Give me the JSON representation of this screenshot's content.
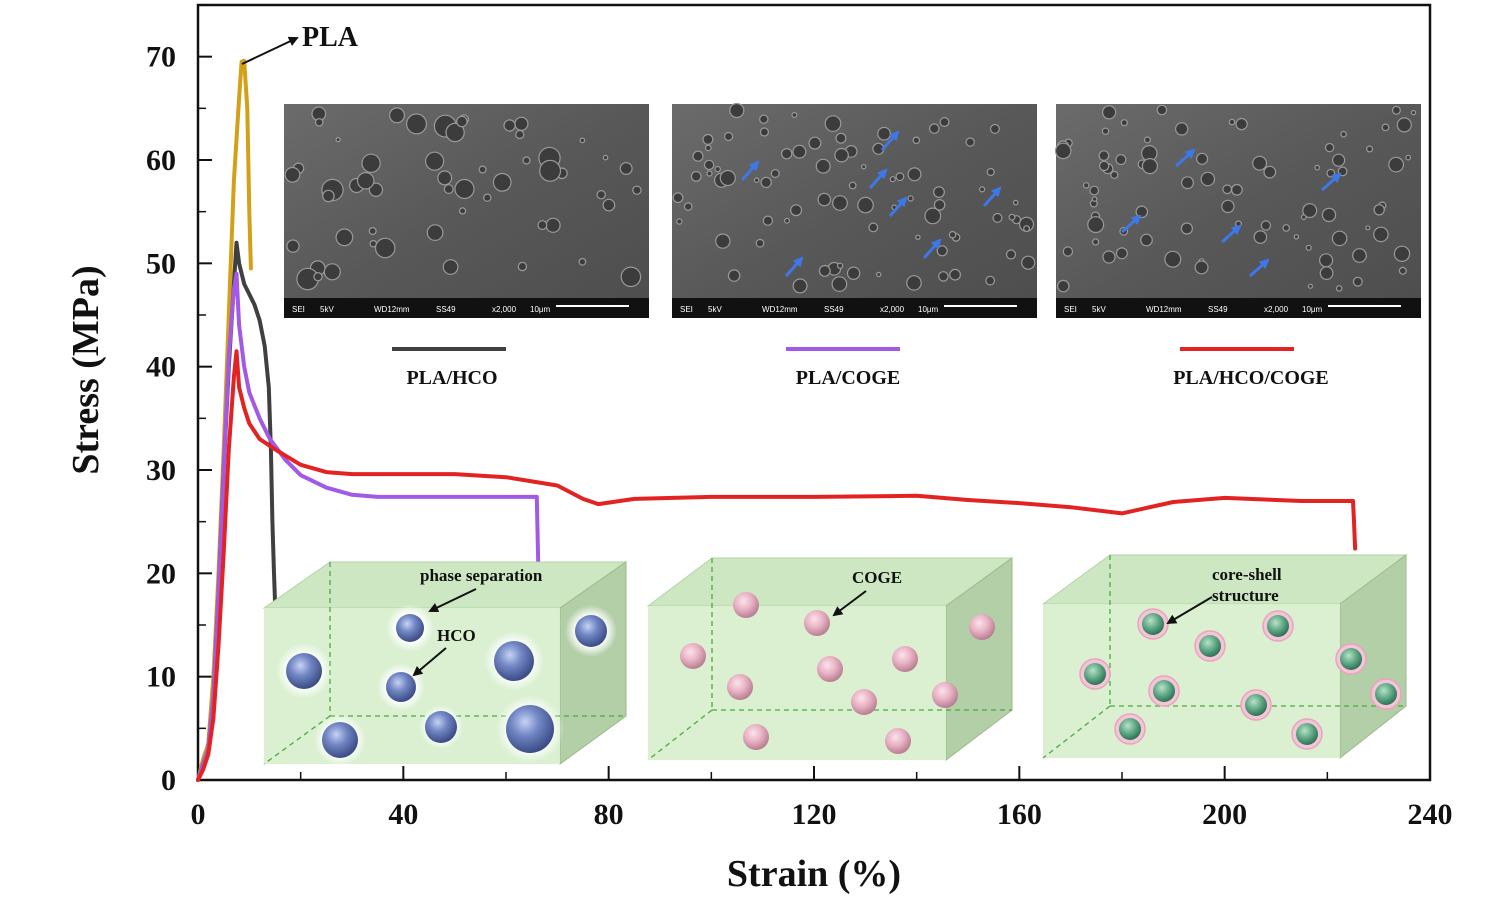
{
  "chart_data": {
    "type": "line",
    "title": "",
    "xlabel": "Strain (%)",
    "ylabel": "Stress (MPa)",
    "xlim": [
      0,
      240
    ],
    "ylim": [
      0,
      75
    ],
    "xticks": [
      0,
      40,
      80,
      120,
      160,
      200,
      240
    ],
    "yticks": [
      0,
      10,
      20,
      30,
      40,
      50,
      60,
      70
    ],
    "grid": false,
    "series": [
      {
        "name": "PLA",
        "color": "#d4a017",
        "points": [
          [
            0,
            0
          ],
          [
            1,
            2
          ],
          [
            2,
            3.5
          ],
          [
            3,
            10
          ],
          [
            4,
            20
          ],
          [
            5,
            32
          ],
          [
            6,
            45
          ],
          [
            7,
            58
          ],
          [
            8,
            66
          ],
          [
            8.5,
            69.5
          ],
          [
            9,
            69.6
          ],
          [
            9.6,
            65
          ],
          [
            10,
            55
          ],
          [
            10.3,
            49.5
          ]
        ]
      },
      {
        "name": "PLA/HCO",
        "color": "#404040",
        "points": [
          [
            0,
            0
          ],
          [
            1,
            1.5
          ],
          [
            2,
            3
          ],
          [
            3,
            8
          ],
          [
            4,
            18
          ],
          [
            5,
            30
          ],
          [
            6,
            40
          ],
          [
            7,
            48
          ],
          [
            7.5,
            52
          ],
          [
            8,
            50
          ],
          [
            9,
            48
          ],
          [
            10,
            47
          ],
          [
            11,
            46
          ],
          [
            12,
            44.5
          ],
          [
            13,
            42
          ],
          [
            13.8,
            38
          ],
          [
            14.2,
            32
          ],
          [
            14.5,
            25
          ],
          [
            14.8,
            20
          ],
          [
            15,
            17.3
          ]
        ]
      },
      {
        "name": "PLA/COGE",
        "color": "#a259e6",
        "points": [
          [
            0,
            0
          ],
          [
            1,
            1.5
          ],
          [
            2,
            3
          ],
          [
            3,
            8
          ],
          [
            4,
            18
          ],
          [
            5,
            30
          ],
          [
            6,
            41
          ],
          [
            7,
            47.5
          ],
          [
            7.5,
            49
          ],
          [
            8,
            44
          ],
          [
            9,
            40
          ],
          [
            10,
            37.5
          ],
          [
            12,
            35
          ],
          [
            14,
            33
          ],
          [
            17,
            31
          ],
          [
            20,
            29.5
          ],
          [
            25,
            28.3
          ],
          [
            30,
            27.6
          ],
          [
            35,
            27.4
          ],
          [
            40,
            27.4
          ],
          [
            50,
            27.4
          ],
          [
            60,
            27.4
          ],
          [
            66,
            27.4
          ],
          [
            66.1,
            25
          ],
          [
            66.3,
            20.7
          ]
        ]
      },
      {
        "name": "PLA/HCO/COGE",
        "color": "#e32222",
        "points": [
          [
            0,
            0
          ],
          [
            1,
            1
          ],
          [
            2,
            2.5
          ],
          [
            3,
            6
          ],
          [
            4,
            13
          ],
          [
            5,
            22
          ],
          [
            6,
            32
          ],
          [
            7,
            39
          ],
          [
            7.5,
            41.5
          ],
          [
            8,
            38
          ],
          [
            9,
            36
          ],
          [
            10,
            34.5
          ],
          [
            12,
            33
          ],
          [
            15,
            32
          ],
          [
            20,
            30.5
          ],
          [
            25,
            29.8
          ],
          [
            30,
            29.6
          ],
          [
            40,
            29.6
          ],
          [
            50,
            29.6
          ],
          [
            60,
            29.3
          ],
          [
            70,
            28.5
          ],
          [
            75,
            27.2
          ],
          [
            78,
            26.7
          ],
          [
            85,
            27.2
          ],
          [
            100,
            27.4
          ],
          [
            120,
            27.4
          ],
          [
            140,
            27.5
          ],
          [
            150,
            27.1
          ],
          [
            160,
            26.8
          ],
          [
            170,
            26.4
          ],
          [
            180,
            25.8
          ],
          [
            190,
            26.9
          ],
          [
            200,
            27.3
          ],
          [
            215,
            27.0
          ],
          [
            225,
            27.0
          ],
          [
            225.2,
            25
          ],
          [
            225.4,
            22.4
          ]
        ]
      }
    ],
    "annotations": {
      "pla_peak": "PLA",
      "phase_separation": "phase separation",
      "hco": "HCO",
      "coge": "COGE",
      "core_shell_line1": "core-shell",
      "core_shell_line2": "structure"
    },
    "legend": [
      {
        "label": "PLA/HCO",
        "color": "#404040"
      },
      {
        "label": "PLA/COGE",
        "color": "#a259e6"
      },
      {
        "label": "PLA/HCO/COGE",
        "color": "#e32222"
      }
    ],
    "sem_images": [
      {
        "footer": [
          "SEI",
          "5kV",
          "WD12mm",
          "SS49",
          "x2,000",
          "10μm"
        ]
      },
      {
        "footer": [
          "SEI",
          "5kV",
          "WD12mm",
          "SS49",
          "x2,000",
          "10μm"
        ]
      },
      {
        "footer": [
          "SEI",
          "5kV",
          "WD12mm",
          "SS49",
          "x2,000",
          "10μm"
        ]
      }
    ]
  }
}
